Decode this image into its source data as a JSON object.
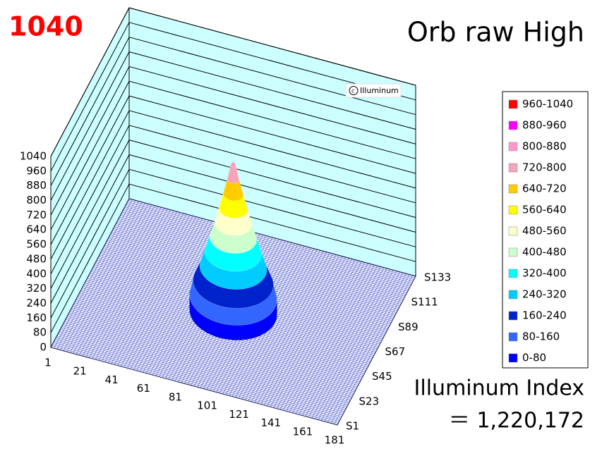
{
  "chart_data": {
    "type": "surface",
    "title": "Orb raw High",
    "max_label": "1040",
    "watermark": "Illuminum",
    "index_label": "Illuminum Index",
    "index_value": "＝ 1,220,172",
    "x": [
      1,
      21,
      41,
      61,
      81,
      101,
      121,
      141,
      161,
      181
    ],
    "xlim": [
      1,
      181
    ],
    "y": [
      "S1",
      "S23",
      "S45",
      "S67",
      "S89",
      "S111",
      "S133"
    ],
    "zlim": [
      0,
      1040
    ],
    "zticks": [
      0,
      80,
      160,
      240,
      320,
      400,
      480,
      560,
      640,
      720,
      800,
      880,
      960,
      1040
    ],
    "center": {
      "x": 91,
      "y": 0.5
    },
    "profile": {
      "z": [
        80,
        160,
        240,
        320,
        400,
        480,
        560,
        640,
        720,
        800
      ],
      "r": [
        26,
        24,
        20,
        17,
        14,
        11,
        8.5,
        6,
        3.5,
        1.5
      ]
    },
    "peak": 820,
    "series": [
      {
        "name": "960-1040",
        "color": "#ff0000"
      },
      {
        "name": "880-960",
        "color": "#ff00ff"
      },
      {
        "name": "800-880",
        "color": "#ff99cc"
      },
      {
        "name": "720-800",
        "color": "#f4a6b8"
      },
      {
        "name": "640-720",
        "color": "#ffcc00"
      },
      {
        "name": "560-640",
        "color": "#ffff00"
      },
      {
        "name": "480-560",
        "color": "#ffffcc"
      },
      {
        "name": "400-480",
        "color": "#ccffcc"
      },
      {
        "name": "320-400",
        "color": "#00ffff"
      },
      {
        "name": "240-320",
        "color": "#00ccff"
      },
      {
        "name": "160-240",
        "color": "#0022cc"
      },
      {
        "name": "80-160",
        "color": "#3366ff"
      },
      {
        "name": "0-80",
        "color": "#0000ff"
      }
    ]
  }
}
